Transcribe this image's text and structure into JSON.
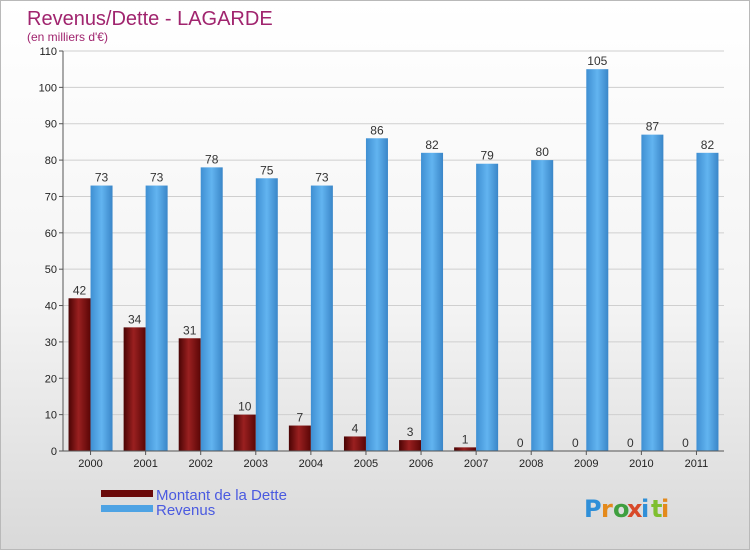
{
  "chart_data": {
    "type": "bar",
    "title": "Revenus/Dette - LAGARDE",
    "subtitle": "(en milliers d'€)",
    "categories": [
      "2000",
      "2001",
      "2002",
      "2003",
      "2004",
      "2005",
      "2006",
      "2007",
      "2008",
      "2009",
      "2010",
      "2011"
    ],
    "series": [
      {
        "name": "Montant de la Dette",
        "color": "#6b0a0a",
        "values": [
          42,
          34,
          31,
          10,
          7,
          4,
          3,
          1,
          0,
          0,
          0,
          0
        ]
      },
      {
        "name": "Revenus",
        "color": "#4ea3e4",
        "values": [
          73,
          73,
          78,
          75,
          73,
          86,
          82,
          79,
          80,
          105,
          87,
          82
        ]
      }
    ],
    "ylim": [
      0,
      110
    ],
    "yticks": [
      0,
      10,
      20,
      30,
      40,
      50,
      60,
      70,
      80,
      90,
      100,
      110
    ],
    "grid": true,
    "legend_position": "bottom-left"
  },
  "logo": {
    "text": "Proxiti"
  }
}
